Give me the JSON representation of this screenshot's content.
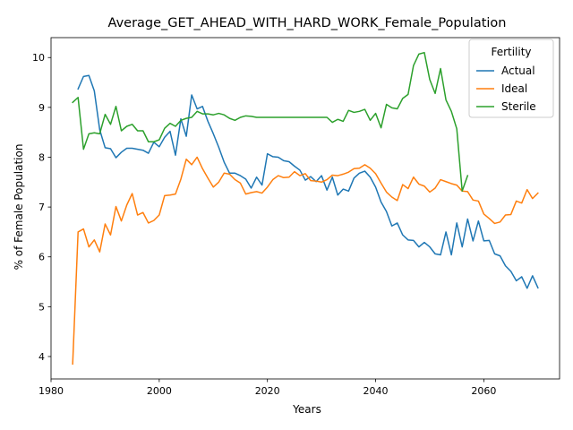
{
  "chart_data": {
    "type": "line",
    "title": "Average_GET_AHEAD_WITH_HARD_WORK_Female_Population",
    "xlabel": "Years",
    "ylabel": "% of Female Population",
    "xlim": [
      1980,
      2074
    ],
    "ylim": [
      3.55,
      10.4
    ],
    "xticks": [
      1980,
      2000,
      2020,
      2040,
      2060
    ],
    "yticks": [
      4,
      5,
      6,
      7,
      8,
      9,
      10
    ],
    "grid": false,
    "legend": {
      "title": "Fertility",
      "placement": "top-right"
    },
    "series": [
      {
        "name": "Actual",
        "color": "#1f77b4",
        "x": [
          1985,
          1986,
          1987,
          1988,
          1989,
          1990,
          1991,
          1992,
          1993,
          1994,
          1995,
          1996,
          1997,
          1998,
          1999,
          2000,
          2001,
          2002,
          2003,
          2004,
          2005,
          2006,
          2007,
          2008,
          2009,
          2010,
          2011,
          2012,
          2013,
          2014,
          2015,
          2016,
          2017,
          2018,
          2019,
          2020,
          2021,
          2022,
          2023,
          2024,
          2025,
          2026,
          2027,
          2028,
          2029,
          2030,
          2031,
          2032,
          2033,
          2034,
          2035,
          2036,
          2037,
          2038,
          2039,
          2040,
          2041,
          2042,
          2043,
          2044,
          2045,
          2046,
          2047,
          2048,
          2049,
          2050,
          2051,
          2052,
          2053,
          2054,
          2055,
          2056,
          2057,
          2058,
          2059,
          2060,
          2061,
          2062,
          2063,
          2064,
          2065,
          2066,
          2067,
          2068,
          2069,
          2070
        ],
        "values": [
          9.37,
          9.62,
          9.64,
          9.33,
          8.55,
          8.19,
          8.17,
          7.99,
          8.1,
          8.18,
          8.18,
          8.16,
          8.14,
          8.08,
          8.3,
          8.21,
          8.4,
          8.52,
          8.04,
          8.77,
          8.42,
          9.25,
          8.97,
          9.02,
          8.72,
          8.47,
          8.2,
          7.9,
          7.68,
          7.68,
          7.63,
          7.56,
          7.38,
          7.6,
          7.44,
          8.07,
          8.01,
          8.0,
          7.93,
          7.91,
          7.82,
          7.74,
          7.54,
          7.61,
          7.51,
          7.63,
          7.34,
          7.6,
          7.24,
          7.36,
          7.32,
          7.58,
          7.68,
          7.72,
          7.6,
          7.4,
          7.1,
          6.91,
          6.62,
          6.68,
          6.44,
          6.34,
          6.33,
          6.2,
          6.29,
          6.2,
          6.06,
          6.04,
          6.5,
          6.04,
          6.68,
          6.2,
          6.76,
          6.32,
          6.72,
          6.32,
          6.33,
          6.06,
          6.02,
          5.82,
          5.71,
          5.52,
          5.6,
          5.37,
          5.62,
          5.38
        ]
      },
      {
        "name": "Ideal",
        "color": "#ff7f0e",
        "x": [
          1984,
          1985,
          1986,
          1987,
          1988,
          1989,
          1990,
          1991,
          1992,
          1993,
          1994,
          1995,
          1996,
          1997,
          1998,
          1999,
          2000,
          2001,
          2002,
          2003,
          2004,
          2005,
          2006,
          2007,
          2008,
          2009,
          2010,
          2011,
          2012,
          2013,
          2014,
          2015,
          2016,
          2017,
          2018,
          2019,
          2020,
          2021,
          2022,
          2023,
          2024,
          2025,
          2026,
          2027,
          2028,
          2029,
          2030,
          2031,
          2032,
          2033,
          2034,
          2035,
          2036,
          2037,
          2038,
          2039,
          2040,
          2041,
          2042,
          2043,
          2044,
          2045,
          2046,
          2047,
          2048,
          2049,
          2050,
          2051,
          2052,
          2053,
          2054,
          2055,
          2056,
          2057,
          2058,
          2059,
          2060,
          2061,
          2062,
          2063,
          2064,
          2065,
          2066,
          2067,
          2068,
          2069,
          2070
        ],
        "values": [
          3.85,
          6.5,
          6.56,
          6.2,
          6.34,
          6.1,
          6.66,
          6.44,
          7.01,
          6.72,
          7.04,
          7.27,
          6.84,
          6.89,
          6.68,
          6.73,
          6.84,
          7.23,
          7.24,
          7.26,
          7.56,
          7.96,
          7.85,
          8.0,
          7.77,
          7.58,
          7.4,
          7.5,
          7.68,
          7.66,
          7.55,
          7.48,
          7.26,
          7.29,
          7.31,
          7.28,
          7.4,
          7.55,
          7.63,
          7.59,
          7.6,
          7.71,
          7.63,
          7.67,
          7.53,
          7.52,
          7.5,
          7.55,
          7.64,
          7.63,
          7.66,
          7.7,
          7.77,
          7.78,
          7.85,
          7.78,
          7.67,
          7.48,
          7.3,
          7.2,
          7.13,
          7.45,
          7.37,
          7.6,
          7.46,
          7.42,
          7.3,
          7.38,
          7.55,
          7.51,
          7.47,
          7.44,
          7.32,
          7.31,
          7.14,
          7.12,
          6.86,
          6.77,
          6.67,
          6.7,
          6.84,
          6.85,
          7.12,
          7.08,
          7.35,
          7.17,
          7.28
        ]
      },
      {
        "name": "Sterile",
        "color": "#2ca02c",
        "x": [
          1984,
          1985,
          1986,
          1987,
          1988,
          1989,
          1990,
          1991,
          1992,
          1993,
          1994,
          1995,
          1996,
          1997,
          1998,
          1999,
          2000,
          2001,
          2002,
          2003,
          2004,
          2005,
          2006,
          2007,
          2008,
          2009,
          2010,
          2011,
          2012,
          2013,
          2014,
          2015,
          2016,
          2017,
          2018,
          2019,
          2020,
          2021,
          2022,
          2023,
          2024,
          2025,
          2026,
          2027,
          2028,
          2029,
          2030,
          2031,
          2032,
          2033,
          2034,
          2035,
          2036,
          2037,
          2038,
          2039,
          2040,
          2041,
          2042,
          2043,
          2044,
          2045,
          2046,
          2047,
          2048,
          2049,
          2050,
          2051,
          2052,
          2053,
          2054,
          2055,
          2056,
          2057
        ],
        "values": [
          9.1,
          9.2,
          8.16,
          8.47,
          8.49,
          8.47,
          8.86,
          8.66,
          9.02,
          8.53,
          8.62,
          8.66,
          8.53,
          8.53,
          8.31,
          8.31,
          8.35,
          8.58,
          8.68,
          8.62,
          8.74,
          8.78,
          8.8,
          8.92,
          8.87,
          8.87,
          8.85,
          8.88,
          8.85,
          8.78,
          8.74,
          8.8,
          8.83,
          8.82,
          8.8,
          8.8,
          8.8,
          8.8,
          8.8,
          8.8,
          8.8,
          8.8,
          8.8,
          8.8,
          8.8,
          8.8,
          8.8,
          8.8,
          8.7,
          8.76,
          8.72,
          8.94,
          8.9,
          8.92,
          8.96,
          8.74,
          8.88,
          8.59,
          9.06,
          8.99,
          8.97,
          9.18,
          9.26,
          9.84,
          10.07,
          10.1,
          9.56,
          9.28,
          9.78,
          9.15,
          8.92,
          8.57,
          7.32,
          7.63
        ]
      }
    ]
  }
}
